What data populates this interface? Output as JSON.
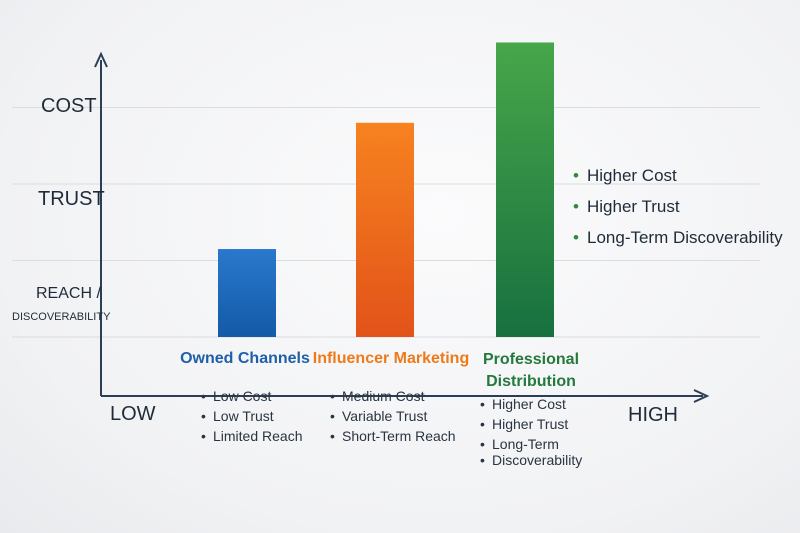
{
  "chart_data": {
    "type": "bar",
    "categories": [
      "Owned Channels",
      "Influencer Marketing",
      "Professional Distribution"
    ],
    "values": [
      1.15,
      2.8,
      3.85
    ],
    "ylim": [
      0,
      4.0
    ],
    "y_levels": [
      "REACH / DISCOVERABILITY",
      "TRUST",
      "COST"
    ],
    "ylabel_reach_1": "REACH /",
    "ylabel_reach_2": "DISCOVERABILITY",
    "ylabel_trust": "TRUST",
    "ylabel_cost": "COST",
    "x_low": "LOW",
    "x_high": "HIGH",
    "grid": true,
    "legend": "none",
    "colors": {
      "owned": [
        "#2a78cc",
        "#135aa8"
      ],
      "influencer": [
        "#f7821f",
        "#e2531a"
      ],
      "professional": [
        "#47a64a",
        "#17703f"
      ],
      "owned_label": "#1f5fa8",
      "influencer_label": "#ef7a1a",
      "professional_label": "#247a3c",
      "axis": "#2c3e55"
    }
  },
  "category_labels": {
    "owned": "Owned Channels",
    "influencer": "Influencer Marketing",
    "professional_1": "Professional",
    "professional_2": "Distribution"
  },
  "notes": {
    "owned": [
      "Low Cost",
      "Low Trust",
      "Limited Reach"
    ],
    "influencer": [
      "Medium Cost",
      "Variable Trust",
      "Short-Term Reach"
    ],
    "professional": [
      "Higher Cost",
      "Higher Trust",
      "Long-Term",
      "Discoverability"
    ]
  },
  "summary": [
    "Higher Cost",
    "Higher Trust",
    "Long-Term Discoverability"
  ]
}
